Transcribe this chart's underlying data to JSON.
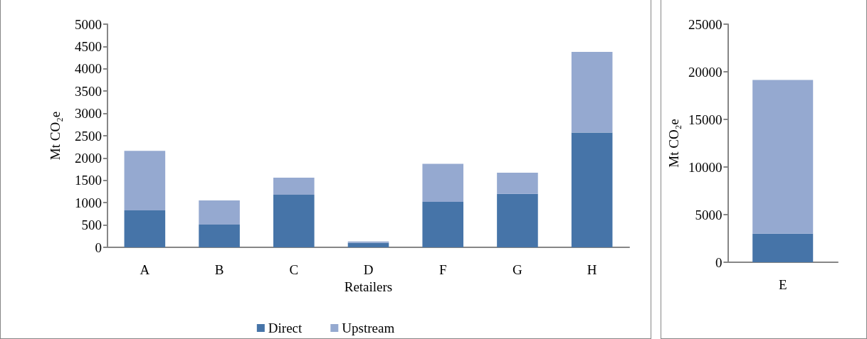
{
  "chart_data": [
    {
      "type": "bar",
      "stacked": true,
      "xlabel": "Retailers",
      "ylabel": "Mt CO₂e",
      "categories": [
        "A",
        "B",
        "C",
        "D",
        "F",
        "G",
        "H"
      ],
      "series": [
        {
          "name": "Direct",
          "color": "#4674a8",
          "values": [
            830,
            510,
            1180,
            100,
            1020,
            1200,
            2570
          ]
        },
        {
          "name": "Upstream",
          "color": "#95a9d0",
          "values": [
            1330,
            540,
            380,
            30,
            850,
            470,
            1810
          ]
        }
      ],
      "ylim": [
        0,
        5000
      ],
      "yticks": [
        0,
        500,
        1000,
        1500,
        2000,
        2500,
        3000,
        3500,
        4000,
        4500,
        5000
      ],
      "grid": false,
      "legend": "bottom"
    },
    {
      "type": "bar",
      "stacked": true,
      "ylabel": "Mt CO₂e",
      "categories": [
        "E"
      ],
      "series": [
        {
          "color": "#4674a8",
          "values": [
            3000
          ]
        },
        {
          "color": "#95a9d0",
          "values": [
            16150
          ]
        }
      ],
      "ylim": [
        0,
        25000
      ],
      "yticks": [
        0,
        5000,
        10000,
        15000,
        20000,
        25000
      ],
      "grid": false,
      "legend": false
    }
  ]
}
